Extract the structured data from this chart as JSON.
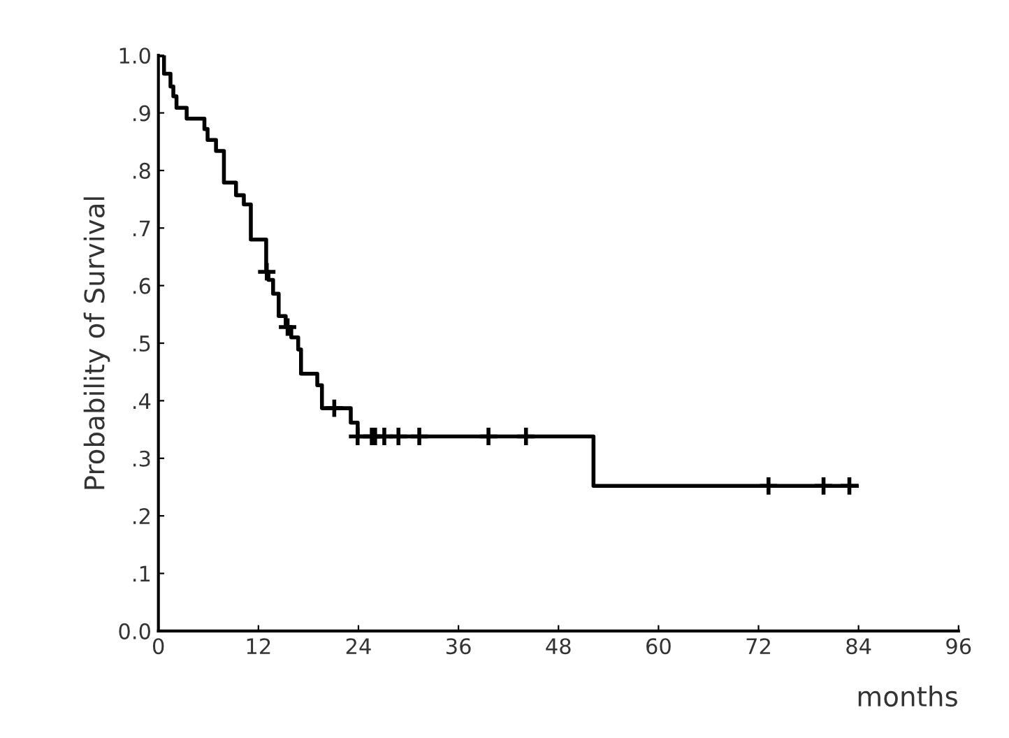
{
  "chart_data": {
    "type": "step",
    "xlabel": "months",
    "ylabel": "Probability of Survival",
    "xlim": [
      0,
      96
    ],
    "ylim": [
      0,
      1
    ],
    "xticks": [
      0,
      12,
      24,
      36,
      48,
      60,
      72,
      84,
      96
    ],
    "yticks": [
      {
        "value": 0,
        "label": "0.0"
      },
      {
        "value": 0.1,
        "label": ".1"
      },
      {
        "value": 0.2,
        "label": ".2"
      },
      {
        "value": 0.3,
        "label": ".3"
      },
      {
        "value": 0.4,
        "label": ".4"
      },
      {
        "value": 0.5,
        "label": ".5"
      },
      {
        "value": 0.6,
        "label": ".6"
      },
      {
        "value": 0.7,
        "label": ".7"
      },
      {
        "value": 0.8,
        "label": ".8"
      },
      {
        "value": 0.9,
        "label": ".9"
      },
      {
        "value": 1,
        "label": "1.0"
      }
    ],
    "grid": false,
    "legend": false,
    "series": [
      {
        "color": "#000000",
        "marker": "none",
        "x": [
          0,
          0.67,
          1.45,
          1.79,
          2.17,
          3.39,
          5.52,
          5.9,
          6.91,
          7.86,
          9.31,
          10.25,
          11.09,
          12.93,
          13.2,
          13.76,
          14.43,
          15.27,
          15.94,
          16.77,
          17.11,
          19.06,
          19.62,
          23.08,
          23.91,
          52.2,
          83.8
        ],
        "values": [
          1.0,
          0.968,
          0.946,
          0.929,
          0.909,
          0.89,
          0.872,
          0.853,
          0.834,
          0.779,
          0.757,
          0.741,
          0.68,
          0.624,
          0.61,
          0.586,
          0.547,
          0.528,
          0.51,
          0.489,
          0.447,
          0.427,
          0.387,
          0.362,
          0.338,
          0.252,
          0.252
        ]
      },
      {
        "type": "scatter",
        "color": "#000000",
        "marker": "cross",
        "x": [
          13.0,
          15.5,
          21.1,
          23.9,
          25.6,
          26.0,
          27.1,
          28.8,
          31.3,
          39.6,
          44.1,
          73.2,
          79.8,
          82.9
        ],
        "values": [
          0.624,
          0.528,
          0.387,
          0.338,
          0.338,
          0.338,
          0.338,
          0.338,
          0.338,
          0.338,
          0.338,
          0.252,
          0.252,
          0.252
        ]
      }
    ]
  }
}
